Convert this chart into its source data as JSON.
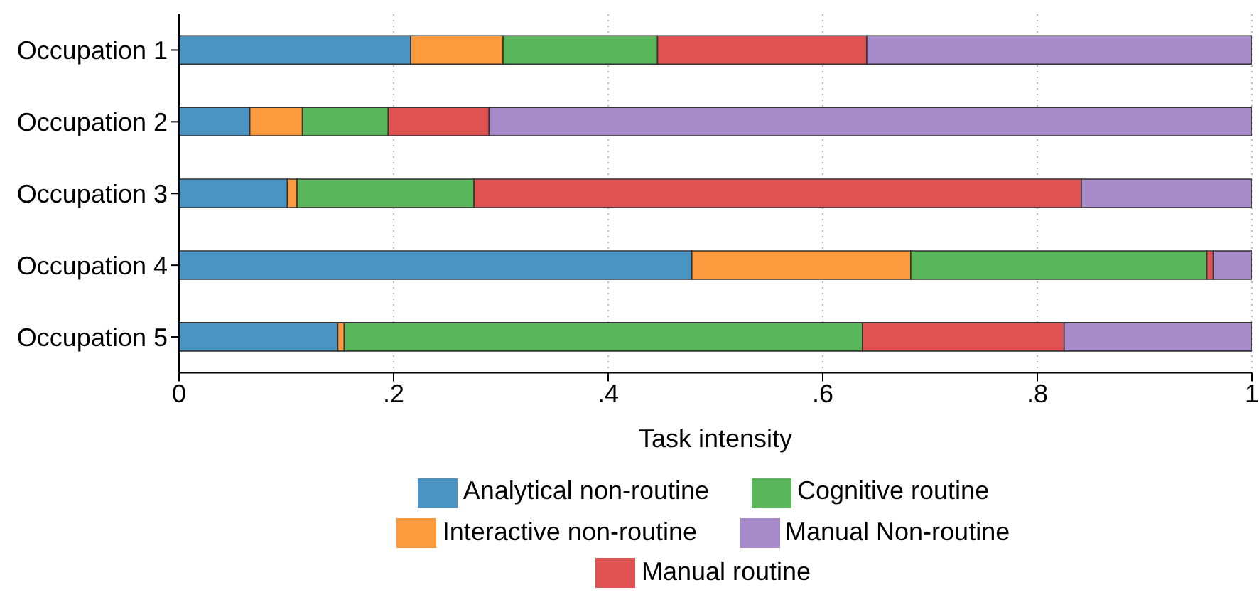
{
  "chart_data": {
    "type": "bar",
    "orientation": "horizontal",
    "stacked": true,
    "xlabel": "Task intensity",
    "categories": [
      "Occupation 1",
      "Occupation 2",
      "Occupation 3",
      "Occupation 4",
      "Occupation 5"
    ],
    "series": [
      {
        "name": "Analytical non-routine",
        "color": "#4a94c4",
        "values": [
          0.216,
          0.066,
          0.101,
          0.478,
          0.148
        ]
      },
      {
        "name": "Interactive non-routine",
        "color": "#fd9a3d",
        "values": [
          0.086,
          0.049,
          0.009,
          0.204,
          0.006
        ]
      },
      {
        "name": "Cognitive routine",
        "color": "#5ab65a",
        "values": [
          0.144,
          0.08,
          0.165,
          0.276,
          0.483
        ]
      },
      {
        "name": "Manual routine",
        "color": "#e05252",
        "values": [
          0.195,
          0.094,
          0.566,
          0.006,
          0.188
        ]
      },
      {
        "name": "Manual Non-routine",
        "color": "#a88bcb",
        "values": [
          0.359,
          0.711,
          0.159,
          0.036,
          0.175
        ]
      }
    ],
    "xlim": [
      0,
      1
    ],
    "xticks": [
      0,
      {
        "value": 0.2,
        "label": ".2"
      },
      {
        "value": 0.4,
        "label": ".4"
      },
      {
        "value": 0.6,
        "label": ".6"
      },
      {
        "value": 0.8,
        "label": ".8"
      },
      1
    ],
    "grid": "x",
    "legend": "bottom"
  }
}
